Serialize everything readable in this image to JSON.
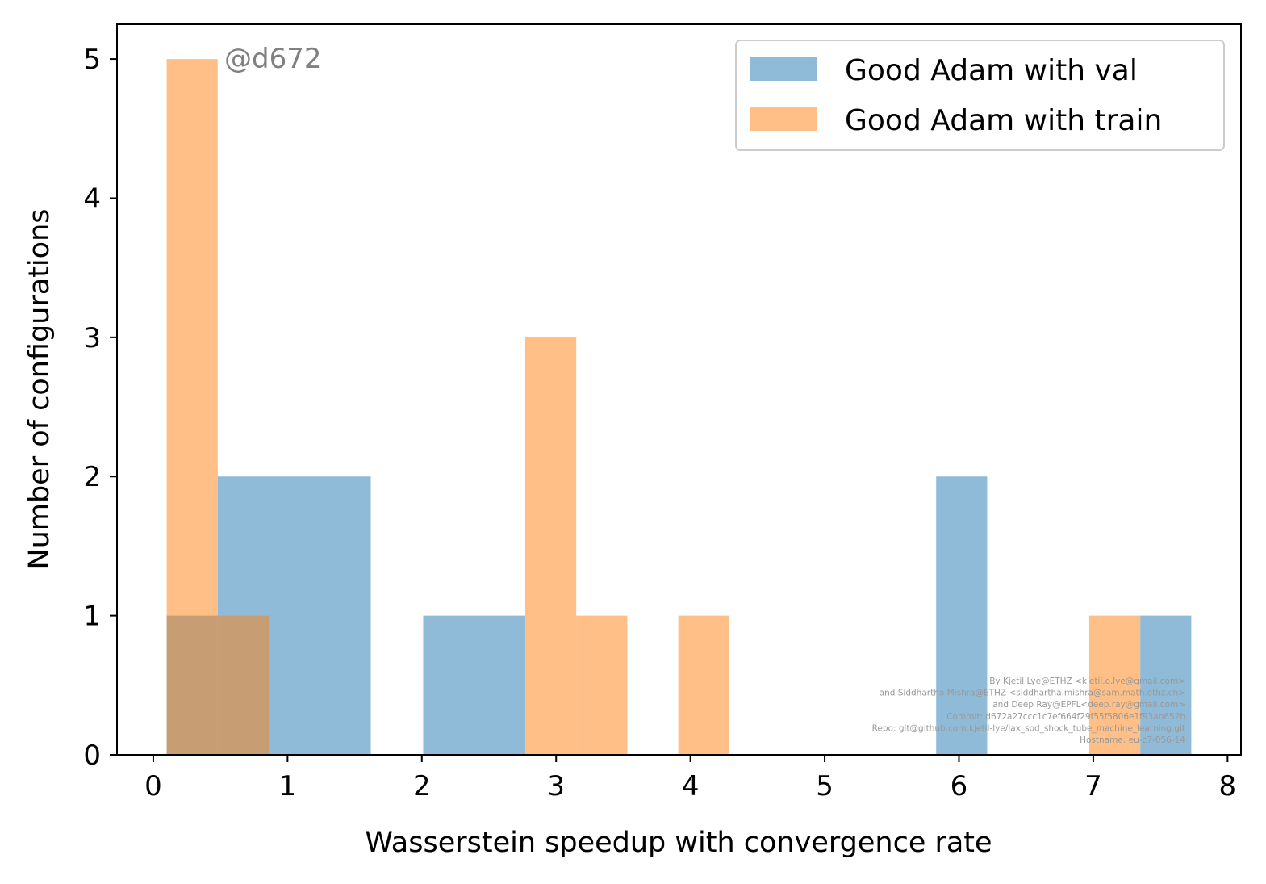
{
  "chart_data": {
    "type": "bar",
    "subtype": "histogram",
    "title": "",
    "xlabel": "Wasserstein speedup with convergence rate",
    "ylabel": "Number of configurations",
    "xlim": [
      -0.27,
      8.1
    ],
    "ylim": [
      0,
      5.25
    ],
    "xticks": [
      "0",
      "1",
      "2",
      "3",
      "4",
      "5",
      "6",
      "7",
      "8"
    ],
    "yticks": [
      "0",
      "1",
      "2",
      "3",
      "4",
      "5"
    ],
    "grid": false,
    "legend_position": "top-right",
    "series": [
      {
        "name": "Good Adam with val",
        "color": "#1f77b4",
        "opacity": 0.5,
        "bins": [
          {
            "x0": 0.1,
            "x1": 0.48,
            "count": 1
          },
          {
            "x0": 0.48,
            "x1": 0.86,
            "count": 2
          },
          {
            "x0": 0.86,
            "x1": 1.24,
            "count": 2
          },
          {
            "x0": 1.24,
            "x1": 1.62,
            "count": 2
          },
          {
            "x0": 2.01,
            "x1": 2.39,
            "count": 1
          },
          {
            "x0": 2.39,
            "x1": 2.77,
            "count": 1
          },
          {
            "x0": 5.83,
            "x1": 6.21,
            "count": 2
          },
          {
            "x0": 7.35,
            "x1": 7.73,
            "count": 1
          }
        ]
      },
      {
        "name": "Good Adam with train",
        "color": "#ff7f0e",
        "opacity": 0.5,
        "bins": [
          {
            "x0": 0.1,
            "x1": 0.48,
            "count": 5
          },
          {
            "x0": 0.48,
            "x1": 0.86,
            "count": 1
          },
          {
            "x0": 2.77,
            "x1": 3.15,
            "count": 3
          },
          {
            "x0": 3.15,
            "x1": 3.53,
            "count": 1
          },
          {
            "x0": 3.91,
            "x1": 4.29,
            "count": 1
          },
          {
            "x0": 6.97,
            "x1": 7.35,
            "count": 1
          }
        ]
      }
    ],
    "annotations": {
      "watermark": "@d672",
      "credits": [
        "By Kjetil Lye@ETHZ <kjetil.o.lye@gmail.com>",
        "and Siddhartha Mishra@ETHZ <siddhartha.mishra@sam.math.ethz.ch>",
        "and Deep Ray@EPFL<deep.ray@gmail.com>",
        "Commit: d672a27ccc1c7ef664f29f55f5806e1f93ab652b",
        "Repo: git@github.com:kjetil-lye/lax_sod_shock_tube_machine_learning.git",
        "Hostname: eu-c7-056-14"
      ]
    }
  }
}
